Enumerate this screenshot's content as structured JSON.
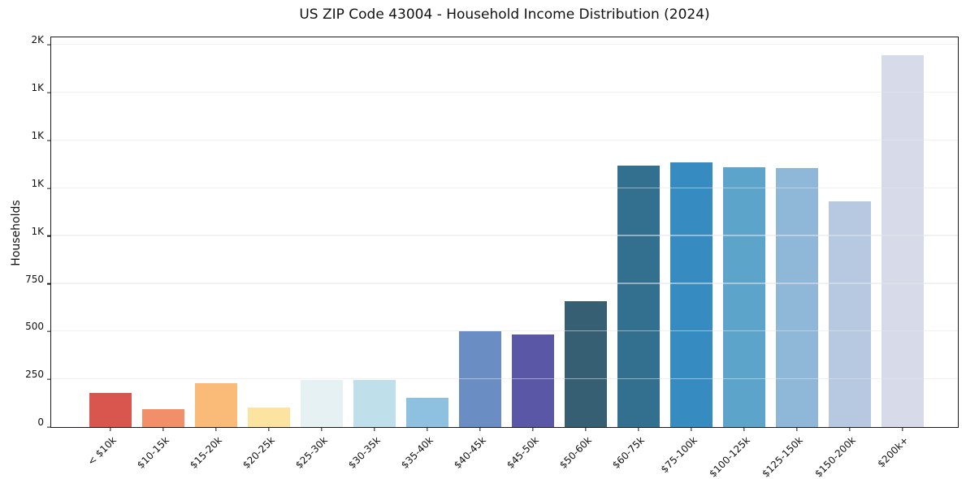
{
  "chart_data": {
    "type": "bar",
    "title": "US ZIP Code 43004 - Household Income Distribution (2024)",
    "xlabel": "",
    "ylabel": "Households",
    "categories": [
      "< $10k",
      "$10-15k",
      "$15-20k",
      "$20-25k",
      "$25-30k",
      "$30-35k",
      "$35-40k",
      "$40-45k",
      "$45-50k",
      "$50-60k",
      "$60-75k",
      "$75-100k",
      "$100-125k",
      "$125-150k",
      "$150-200k",
      "$200k+"
    ],
    "values": [
      180,
      95,
      228,
      103,
      245,
      248,
      155,
      500,
      483,
      660,
      1370,
      1385,
      1360,
      1355,
      1180,
      1945
    ],
    "bar_colors": [
      "#d9564e",
      "#f28e68",
      "#fbbb78",
      "#fde3a0",
      "#e6f1f4",
      "#bfdfeb",
      "#8ec0df",
      "#6a8ec4",
      "#5a58a6",
      "#365f74",
      "#337090",
      "#368cc0",
      "#5ca4ca",
      "#8fb7d8",
      "#b6c9e0",
      "#d7dae8"
    ],
    "yticks": [
      {
        "value": 0,
        "label": "0"
      },
      {
        "value": 250,
        "label": "250"
      },
      {
        "value": 500,
        "label": "500"
      },
      {
        "value": 750,
        "label": "750"
      },
      {
        "value": 1000,
        "label": "1K"
      },
      {
        "value": 1250,
        "label": "1K"
      },
      {
        "value": 1500,
        "label": "1K"
      },
      {
        "value": 1750,
        "label": "1K"
      },
      {
        "value": 2000,
        "label": "2K"
      }
    ],
    "ylim": [
      0,
      2040
    ],
    "grid": true,
    "legend": null,
    "background_color": "#ffffff",
    "frame_color": "#1a1a1a"
  }
}
